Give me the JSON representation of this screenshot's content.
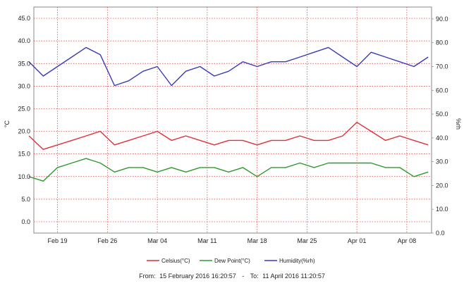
{
  "chart_data": {
    "type": "line",
    "x_range": [
      "2016-02-15 16:20:57",
      "2016-04-11 11:20:57"
    ],
    "x_ticks": [
      {
        "date": "2016-02-19",
        "label": "Feb 19"
      },
      {
        "date": "2016-02-26",
        "label": "Feb 26"
      },
      {
        "date": "2016-03-04",
        "label": "Mar 04"
      },
      {
        "date": "2016-03-11",
        "label": "Mar 11"
      },
      {
        "date": "2016-03-18",
        "label": "Mar 18"
      },
      {
        "date": "2016-03-25",
        "label": "Mar 25"
      },
      {
        "date": "2016-04-01",
        "label": "Apr 01"
      },
      {
        "date": "2016-04-08",
        "label": "Apr 08"
      }
    ],
    "y_left": {
      "label": "°C",
      "min": -2.5,
      "max": 47.5,
      "ticks": [
        "0.0",
        "5.0",
        "10.0",
        "15.0",
        "20.0",
        "25.0",
        "30.0",
        "35.0",
        "40.0",
        "45.0"
      ]
    },
    "y_right": {
      "label": "%rh",
      "min": 0,
      "max": 95,
      "ticks": [
        "0.0",
        "10.0",
        "20.0",
        "30.0",
        "40.0",
        "50.0",
        "60.0",
        "70.0",
        "80.0",
        "90.0"
      ]
    },
    "grid": true,
    "legend_position": "bottom",
    "series": [
      {
        "name": "Celsius(°C)",
        "axis": "left",
        "color": "#e0303a",
        "x": [
          "2016-02-15",
          "2016-02-17",
          "2016-02-19",
          "2016-02-21",
          "2016-02-23",
          "2016-02-25",
          "2016-02-27",
          "2016-02-29",
          "2016-03-02",
          "2016-03-04",
          "2016-03-06",
          "2016-03-08",
          "2016-03-10",
          "2016-03-12",
          "2016-03-14",
          "2016-03-16",
          "2016-03-18",
          "2016-03-20",
          "2016-03-22",
          "2016-03-24",
          "2016-03-26",
          "2016-03-28",
          "2016-03-30",
          "2016-04-01",
          "2016-04-03",
          "2016-04-05",
          "2016-04-07",
          "2016-04-09",
          "2016-04-11"
        ],
        "values": [
          19,
          16,
          17,
          18,
          19,
          20,
          17,
          18,
          19,
          20,
          18,
          19,
          18,
          17,
          18,
          18,
          17,
          18,
          18,
          19,
          18,
          18,
          19,
          22,
          20,
          18,
          19,
          18,
          17
        ]
      },
      {
        "name": "Dew Point(°C)",
        "axis": "left",
        "color": "#2e9a2e",
        "x": [
          "2016-02-15",
          "2016-02-17",
          "2016-02-19",
          "2016-02-21",
          "2016-02-23",
          "2016-02-25",
          "2016-02-27",
          "2016-02-29",
          "2016-03-02",
          "2016-03-04",
          "2016-03-06",
          "2016-03-08",
          "2016-03-10",
          "2016-03-12",
          "2016-03-14",
          "2016-03-16",
          "2016-03-18",
          "2016-03-20",
          "2016-03-22",
          "2016-03-24",
          "2016-03-26",
          "2016-03-28",
          "2016-03-30",
          "2016-04-01",
          "2016-04-03",
          "2016-04-05",
          "2016-04-07",
          "2016-04-09",
          "2016-04-11"
        ],
        "values": [
          10,
          9,
          12,
          13,
          14,
          13,
          11,
          12,
          12,
          11,
          12,
          11,
          12,
          12,
          11,
          12,
          10,
          12,
          12,
          13,
          12,
          13,
          13,
          13,
          13,
          12,
          12,
          10,
          11
        ]
      },
      {
        "name": "Humidity(%rh)",
        "axis": "right",
        "color": "#3a3ab8",
        "x": [
          "2016-02-15",
          "2016-02-17",
          "2016-02-19",
          "2016-02-21",
          "2016-02-23",
          "2016-02-25",
          "2016-02-27",
          "2016-02-29",
          "2016-03-02",
          "2016-03-04",
          "2016-03-06",
          "2016-03-08",
          "2016-03-10",
          "2016-03-12",
          "2016-03-14",
          "2016-03-16",
          "2016-03-18",
          "2016-03-20",
          "2016-03-22",
          "2016-03-24",
          "2016-03-26",
          "2016-03-28",
          "2016-03-30",
          "2016-04-01",
          "2016-04-03",
          "2016-04-05",
          "2016-04-07",
          "2016-04-09",
          "2016-04-11"
        ],
        "values": [
          72,
          66,
          70,
          74,
          78,
          75,
          62,
          64,
          68,
          70,
          62,
          68,
          70,
          66,
          68,
          72,
          70,
          72,
          72,
          74,
          76,
          78,
          74,
          70,
          76,
          74,
          72,
          70,
          74
        ]
      }
    ]
  },
  "footer": {
    "from_label": "From:",
    "from_value": "15 February 2016 16:20:57",
    "separator": "-",
    "to_label": "To:",
    "to_value": "11 April 2016 11:20:57"
  }
}
